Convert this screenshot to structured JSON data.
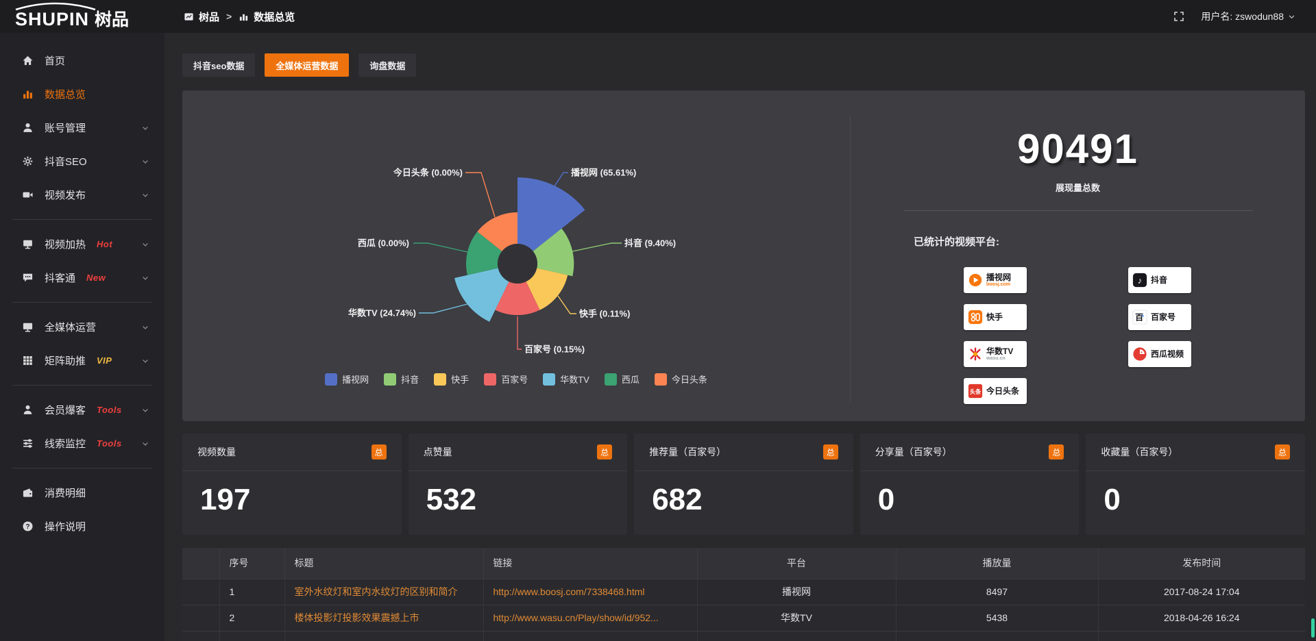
{
  "topbar": {
    "logo_en": "SHUPIN",
    "logo_cn": "树品",
    "breadcrumb": [
      {
        "icon": "board-icon",
        "label": "树品"
      },
      {
        "icon": "bar-chart-icon",
        "label": "数据总览"
      }
    ],
    "breadcrumb_separator": ">",
    "username": "用户名: zswodun88"
  },
  "sidebar": {
    "items": [
      {
        "icon": "home",
        "label": "首页"
      },
      {
        "icon": "chart",
        "label": "数据总览",
        "active": true
      },
      {
        "icon": "user",
        "label": "账号管理",
        "chevron": true
      },
      {
        "icon": "gear",
        "label": "抖音SEO",
        "chevron": true
      },
      {
        "icon": "video",
        "label": "视频发布",
        "chevron": true,
        "divider_after": true
      },
      {
        "icon": "screen",
        "label": "视频加热",
        "badge": "Hot",
        "badge_color": "#f03e3e",
        "chevron": true
      },
      {
        "icon": "chat",
        "label": "抖客通",
        "badge": "New",
        "badge_color": "#f03e3e",
        "chevron": true,
        "divider_after": true
      },
      {
        "icon": "monitor",
        "label": "全媒体运营",
        "chevron": true
      },
      {
        "icon": "grid",
        "label": "矩阵助推",
        "badge": "VIP",
        "badge_color": "#f0b840",
        "chevron": true,
        "divider_after": true
      },
      {
        "icon": "person",
        "label": "会员爆客",
        "badge": "Tools",
        "badge_color": "#f03e3e",
        "chevron": true
      },
      {
        "icon": "sliders",
        "label": "线索监控",
        "badge": "Tools",
        "badge_color": "#f03e3e",
        "chevron": true,
        "divider_after": true
      },
      {
        "icon": "wallet",
        "label": "消费明细"
      },
      {
        "icon": "help",
        "label": "操作说明"
      }
    ]
  },
  "tabs": [
    {
      "label": "抖音seo数据",
      "active": false
    },
    {
      "label": "全媒体运营数据",
      "active": true
    },
    {
      "label": "询盘数据",
      "active": false
    }
  ],
  "chart_data": {
    "type": "pie",
    "style": "nightingale-rose",
    "categories": [
      "播视网",
      "抖音",
      "快手",
      "百家号",
      "华数TV",
      "西瓜",
      "今日头条"
    ],
    "values_percent": [
      65.61,
      9.4,
      0.11,
      0.15,
      24.74,
      0.0,
      0.0
    ],
    "colors": [
      "#5470c6",
      "#91cc75",
      "#fac858",
      "#ee6666",
      "#73c0de",
      "#3ba272",
      "#fc8452"
    ],
    "legend_position": "bottom",
    "inner_radius": 29,
    "base_outer_radius": 75,
    "max_outer_radius": 126
  },
  "summary": {
    "total_value": "90491",
    "total_label": "展现量总数",
    "platforms_label": "已统计的视频平台:",
    "badge_columns": {
      "left": [
        {
          "icon": "boosj",
          "name": "播视网",
          "sub": "boosj.com",
          "sub_color": "#f7760c"
        },
        {
          "icon": "kuaishou",
          "name": "快手",
          "sub": ""
        },
        {
          "icon": "wasu",
          "name": "华数TV",
          "sub": "wasu.cn",
          "sub_color": "#9aa0a6"
        },
        {
          "icon": "toutiao",
          "name": "今日头条",
          "sub": ""
        }
      ],
      "right": [
        {
          "icon": "douyin",
          "name": "抖音",
          "sub": ""
        },
        {
          "icon": "baijiahao",
          "name": "百家号",
          "sub": ""
        },
        {
          "icon": "xigua",
          "name": "西瓜视频",
          "sub": ""
        }
      ]
    }
  },
  "stat_cards": [
    {
      "title": "视频数量",
      "badge": "总",
      "value": "197"
    },
    {
      "title": "点赞量",
      "badge": "总",
      "value": "532"
    },
    {
      "title": "推荐量（百家号）",
      "badge": "总",
      "value": "682"
    },
    {
      "title": "分享量（百家号）",
      "badge": "总",
      "value": "0"
    },
    {
      "title": "收藏量（百家号）",
      "badge": "总",
      "value": "0"
    }
  ],
  "table": {
    "headers": [
      "序号",
      "标题",
      "链接",
      "平台",
      "播放量",
      "发布时间"
    ],
    "rows": [
      {
        "index": "1",
        "title": "室外水纹灯和室内水纹灯的区别和简介",
        "link": "http://www.boosj.com/7338468.html",
        "platform": "播视网",
        "plays": "8497",
        "time": "2017-08-24 17:04"
      },
      {
        "index": "2",
        "title": "楼体投影灯投影效果震撼上市",
        "link": "http://www.wasu.cn/Play/show/id/952...",
        "platform": "华数TV",
        "plays": "5438",
        "time": "2018-04-26 16:24"
      },
      {
        "index": "",
        "title": "",
        "link": "",
        "platform": "",
        "plays": "",
        "time": ""
      }
    ]
  }
}
